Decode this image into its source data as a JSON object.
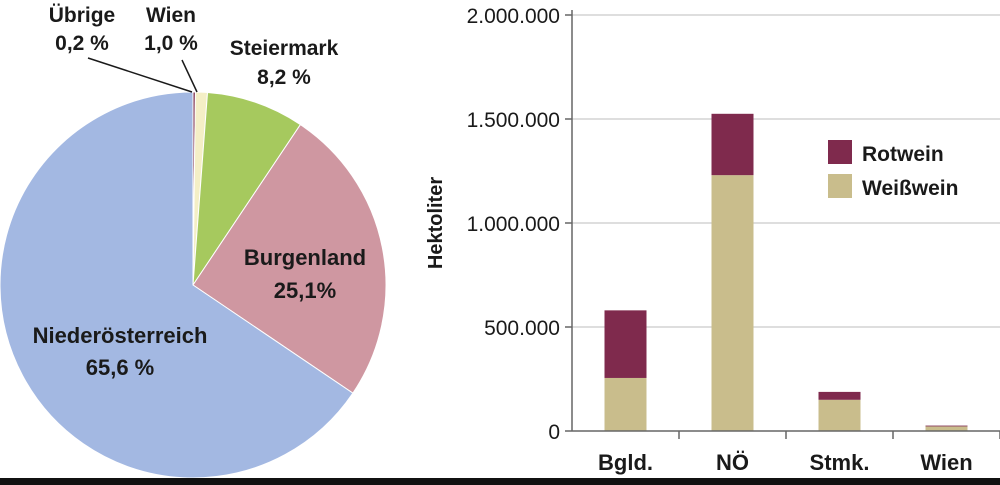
{
  "chart_data": [
    {
      "type": "pie",
      "slices": [
        {
          "label": "Übrige",
          "value_label": "0,2 %",
          "value": 0.2,
          "color": "#7a2a48"
        },
        {
          "label": "Wien",
          "value_label": "1,0 %",
          "value": 1.0,
          "color": "#f4efc6"
        },
        {
          "label": "Steiermark",
          "value_label": "8,2 %",
          "value": 8.2,
          "color": "#a6c95e"
        },
        {
          "label": "Burgenland",
          "value_label": "25,1%",
          "value": 25.1,
          "color": "#cf97a1"
        },
        {
          "label": "Niederösterreich",
          "value_label": "65,6 %",
          "value": 65.6,
          "color": "#a3b8e2"
        }
      ]
    },
    {
      "type": "bar",
      "stacked": true,
      "categories": [
        "Bgld.",
        "NÖ",
        "Stmk.",
        "Wien"
      ],
      "series": [
        {
          "name": "Weißwein",
          "values": [
            255000,
            1230000,
            150000,
            22000
          ],
          "color": "#c9bd8c"
        },
        {
          "name": "Rotwein",
          "values": [
            325000,
            295000,
            38000,
            4000
          ],
          "color": "#7f2a4d"
        }
      ],
      "ylabel": "Hektoliter",
      "ylim": [
        0,
        2000000
      ],
      "yticks": [
        0,
        500000,
        1000000,
        1500000,
        2000000
      ],
      "ytick_labels": [
        "0",
        "500.000",
        "1.000.000",
        "1.500.000",
        "2.000.000"
      ],
      "legend": "top-right",
      "grid": true
    }
  ]
}
